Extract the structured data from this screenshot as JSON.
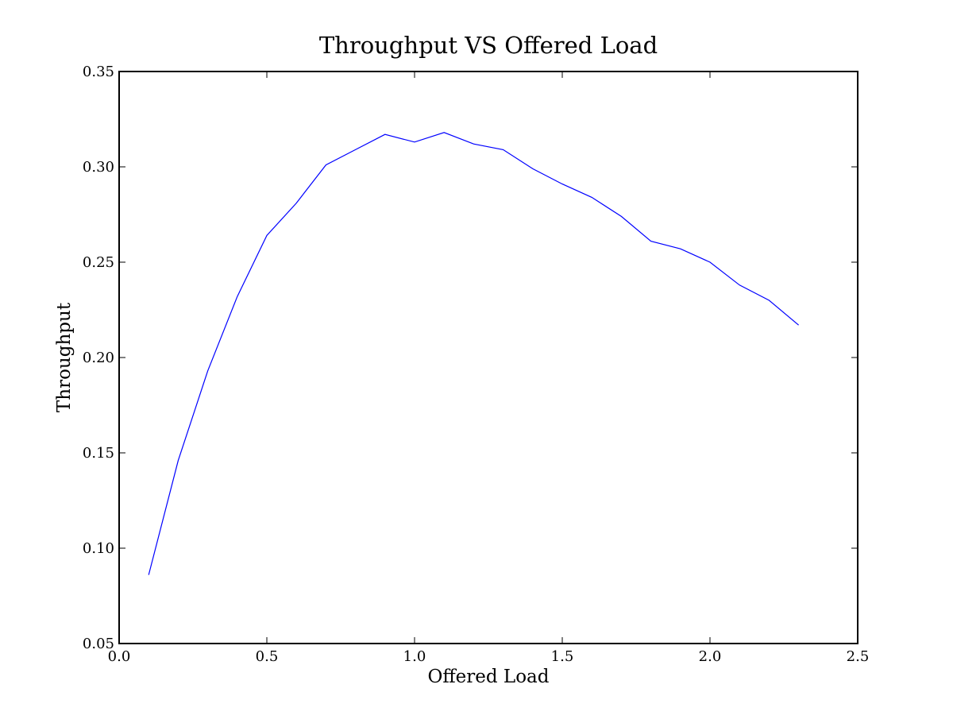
{
  "chart_data": {
    "type": "line",
    "title": "Throughput VS Offered Load",
    "xlabel": "Offered Load",
    "ylabel": "Throughput",
    "xlim": [
      0.0,
      2.5
    ],
    "ylim": [
      0.05,
      0.35
    ],
    "x_ticks": [
      "0.0",
      "0.5",
      "1.0",
      "1.5",
      "2.0",
      "2.5"
    ],
    "y_ticks": [
      "0.05",
      "0.10",
      "0.15",
      "0.20",
      "0.25",
      "0.30",
      "0.35"
    ],
    "grid": false,
    "line_color": "#0000ff",
    "series": [
      {
        "x": [
          0.1,
          0.2,
          0.3,
          0.4,
          0.5,
          0.6,
          0.7,
          0.8,
          0.9,
          1.0,
          1.1,
          1.2,
          1.3,
          1.4,
          1.5,
          1.6,
          1.7,
          1.8,
          1.9,
          2.0,
          2.1,
          2.2,
          2.3
        ],
        "y": [
          0.086,
          0.146,
          0.193,
          0.232,
          0.264,
          0.281,
          0.301,
          0.309,
          0.317,
          0.313,
          0.318,
          0.312,
          0.309,
          0.299,
          0.291,
          0.284,
          0.274,
          0.261,
          0.257,
          0.25,
          0.238,
          0.23,
          0.217
        ]
      }
    ]
  }
}
